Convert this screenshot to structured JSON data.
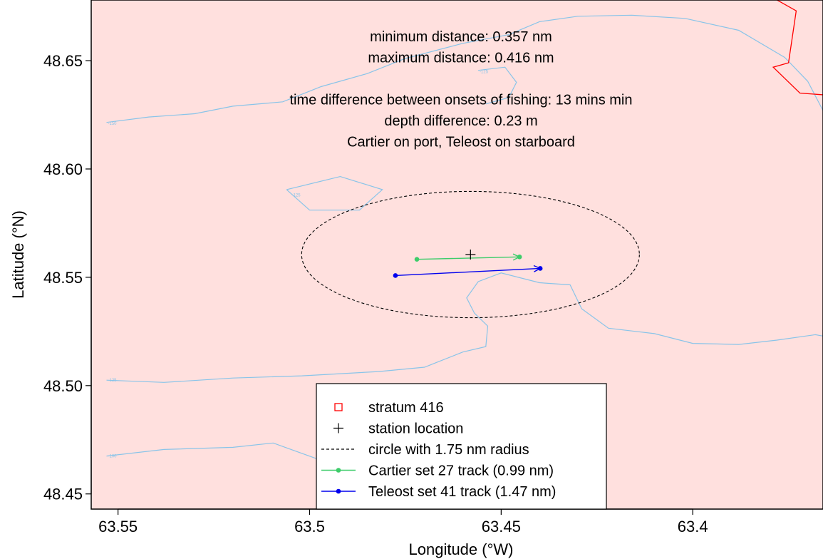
{
  "chart_data": {
    "type": "line",
    "title": "",
    "xlabel": "Longitude (°W)",
    "ylabel": "Latitude (°N)",
    "xlim": [
      63.557,
      63.366
    ],
    "ylim": [
      48.443,
      48.678
    ],
    "x_reversed": true,
    "x_ticks": [
      {
        "value": 63.55,
        "label": "63.55"
      },
      {
        "value": 63.5,
        "label": "63.5"
      },
      {
        "value": 63.45,
        "label": "63.45"
      },
      {
        "value": 63.4,
        "label": "63.4"
      }
    ],
    "y_ticks": [
      {
        "value": 48.45,
        "label": "48.45"
      },
      {
        "value": 48.5,
        "label": "48.50"
      },
      {
        "value": 48.55,
        "label": "48.55"
      },
      {
        "value": 48.6,
        "label": "48.60"
      },
      {
        "value": 48.65,
        "label": "48.65"
      }
    ],
    "grid": false,
    "background_color": "#ffe0de",
    "annotations": [
      "minimum distance: 0.357 nm",
      "maximum distance: 0.416 nm",
      "",
      "time difference between onsets of fishing: 13 mins min",
      "depth difference: 0.23 m",
      "Cartier on port, Teleost on starboard"
    ],
    "station": {
      "lon": 63.458,
      "lat": 48.5605,
      "symbol": "+"
    },
    "circle": {
      "center_lon": 63.458,
      "center_lat": 48.5605,
      "radius_nm": 1.75
    },
    "stratum_boundary": {
      "name": "stratum 416",
      "color": "#ff0000",
      "points": [
        [
          63.381,
          48.681
        ],
        [
          63.373,
          48.673
        ],
        [
          63.375,
          48.649
        ],
        [
          63.379,
          48.647
        ],
        [
          63.372,
          48.635
        ],
        [
          63.364,
          48.634
        ]
      ]
    },
    "series": [
      {
        "name": "Cartier set 27 track (0.99 nm)",
        "color": "#3dcc6a",
        "start": [
          63.472,
          48.5583
        ],
        "end": [
          63.4452,
          48.5594
        ]
      },
      {
        "name": "Teleost set 41 track (1.47 nm)",
        "color": "#0000ee",
        "start": [
          63.4776,
          48.5508
        ],
        "end": [
          63.4398,
          48.5541
        ]
      }
    ],
    "contours": [
      {
        "label": "-150",
        "label_at": [
          63.553,
          48.621
        ],
        "color": "#89c4e9",
        "points": [
          [
            63.553,
            48.6215
          ],
          [
            63.542,
            48.624
          ],
          [
            63.53,
            48.6255
          ],
          [
            63.52,
            48.629
          ],
          [
            63.507,
            48.631
          ],
          [
            63.497,
            48.638
          ],
          [
            63.485,
            48.644
          ],
          [
            63.475,
            48.651
          ],
          [
            63.46,
            48.658
          ],
          [
            63.448,
            48.662
          ],
          [
            63.44,
            48.668
          ],
          [
            63.43,
            48.6705
          ],
          [
            63.416,
            48.671
          ],
          [
            63.402,
            48.6695
          ],
          [
            63.388,
            48.664
          ],
          [
            63.376,
            48.6515
          ],
          [
            63.37,
            48.6405
          ],
          [
            63.366,
            48.627
          ],
          [
            63.362,
            48.615
          ],
          [
            63.356,
            48.603
          ]
        ]
      },
      {
        "label": "-125",
        "label_at": [
          63.456,
          48.645
        ],
        "color": "#89c4e9",
        "points": [
          [
            63.456,
            48.6455
          ],
          [
            63.449,
            48.647
          ],
          [
            63.446,
            48.64
          ],
          [
            63.448,
            48.633
          ],
          [
            63.454,
            48.63
          ]
        ]
      },
      {
        "label": "-125",
        "label_at": [
          63.505,
          48.588
        ],
        "color": "#89c4e9",
        "points": [
          [
            63.506,
            48.5905
          ],
          [
            63.492,
            48.5965
          ],
          [
            63.481,
            48.5905
          ],
          [
            63.487,
            48.581
          ],
          [
            63.5,
            48.581
          ],
          [
            63.506,
            48.5905
          ]
        ]
      },
      {
        "label": "-125",
        "label_at": [
          63.553,
          48.5025
        ],
        "color": "#89c4e9",
        "points": [
          [
            63.553,
            48.5025
          ],
          [
            63.538,
            48.5015
          ],
          [
            63.52,
            48.5035
          ],
          [
            63.502,
            48.5045
          ],
          [
            63.482,
            48.5065
          ],
          [
            63.47,
            48.5085
          ],
          [
            63.46,
            48.5155
          ],
          [
            63.454,
            48.518
          ],
          [
            63.4535,
            48.5275
          ],
          [
            63.457,
            48.5335
          ],
          [
            63.459,
            48.5405
          ],
          [
            63.456,
            48.548
          ],
          [
            63.45,
            48.552
          ],
          [
            63.44,
            48.5475
          ],
          [
            63.432,
            48.5465
          ],
          [
            63.429,
            48.5355
          ],
          [
            63.422,
            48.5265
          ],
          [
            63.41,
            48.524
          ],
          [
            63.4,
            48.5195
          ],
          [
            63.388,
            48.519
          ],
          [
            63.378,
            48.521
          ],
          [
            63.368,
            48.5235
          ],
          [
            63.36,
            48.521
          ]
        ]
      },
      {
        "label": "-100",
        "label_at": [
          63.553,
          48.4675
        ],
        "color": "#89c4e9",
        "points": [
          [
            63.553,
            48.4675
          ],
          [
            63.538,
            48.4705
          ],
          [
            63.52,
            48.4715
          ],
          [
            63.5095,
            48.4735
          ],
          [
            63.497,
            48.4655
          ],
          [
            63.479,
            48.4595
          ],
          [
            63.463,
            48.4515
          ],
          [
            63.45,
            48.4465
          ]
        ]
      }
    ],
    "legend": {
      "position": "bottom-center",
      "entries": [
        {
          "label": "stratum 416",
          "symbol": "open-square",
          "color": "#ff0000"
        },
        {
          "label": "station location",
          "symbol": "plus",
          "color": "#000000"
        },
        {
          "label": "circle with 1.75 nm radius",
          "symbol": "dashed-line",
          "color": "#000000"
        },
        {
          "label": "Cartier set 27 track (0.99 nm)",
          "symbol": "line-dot",
          "color": "#3dcc6a"
        },
        {
          "label": "Teleost set 41 track (1.47 nm)",
          "symbol": "line-dot",
          "color": "#0000ee"
        }
      ]
    }
  }
}
